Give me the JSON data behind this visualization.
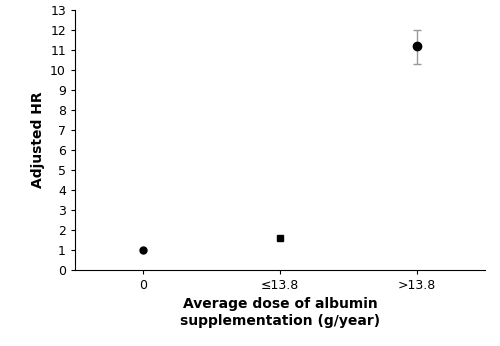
{
  "x_positions": [
    1,
    2,
    3
  ],
  "x_labels": [
    "0",
    "≤13.8",
    ">13.8"
  ],
  "y_values": [
    1.0,
    1.6,
    11.2
  ],
  "y_errors_lower": [
    null,
    null,
    0.9
  ],
  "y_errors_upper": [
    null,
    null,
    0.8
  ],
  "markers": [
    "o",
    "s",
    "o"
  ],
  "marker_sizes": [
    5,
    4,
    6
  ],
  "marker_colors": [
    "black",
    "black",
    "black"
  ],
  "ylabel": "Adjusted HR",
  "xlabel": "Average dose of albumin\nsupplementation (g/year)",
  "ylim": [
    0,
    13
  ],
  "yticks": [
    0,
    1,
    2,
    3,
    4,
    5,
    6,
    7,
    8,
    9,
    10,
    11,
    12,
    13
  ],
  "xlim": [
    0.5,
    3.5
  ],
  "error_bar_color": "#999999",
  "error_cap_size": 3,
  "error_line_width": 1.0,
  "label_fontsize": 10,
  "tick_fontsize": 9,
  "background_color": "white",
  "figure_width": 5.0,
  "figure_height": 3.46,
  "dpi": 100
}
